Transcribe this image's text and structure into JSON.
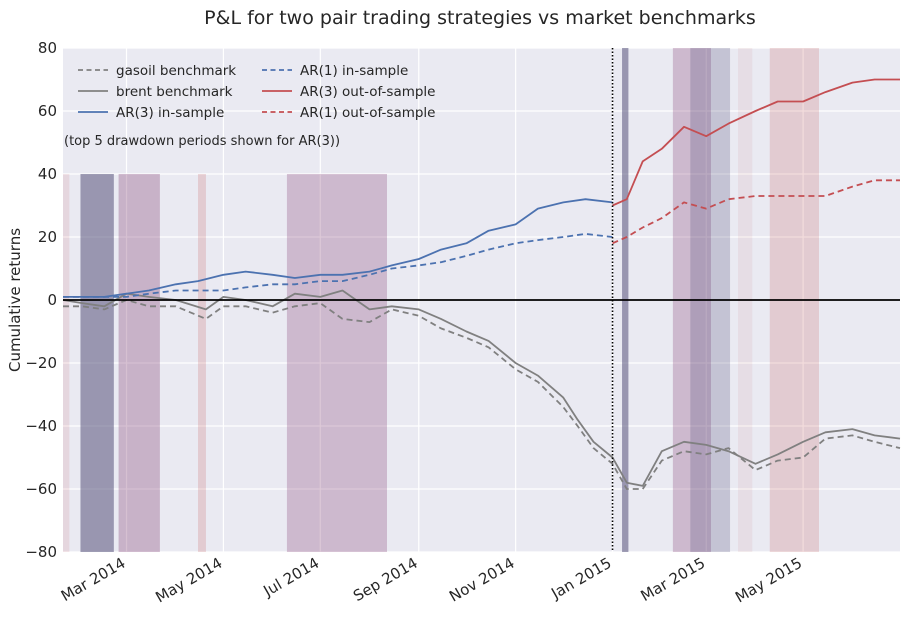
{
  "chart_data": {
    "type": "line",
    "title": "P&L for two pair trading strategies vs market benchmarks",
    "xlabel": "",
    "ylabel": "Cumulative returns",
    "annotation": "(top 5 drawdown periods shown for AR(3))",
    "xlim": [
      "2014-01-20",
      "2015-07-01"
    ],
    "ylim": [
      -80,
      80
    ],
    "yticks": [
      -80,
      -60,
      -40,
      -20,
      0,
      20,
      40,
      60,
      80
    ],
    "ytick_labels": [
      "−80",
      "−60",
      "−40",
      "−20",
      "0",
      "20",
      "40",
      "60",
      "80"
    ],
    "xticks": [
      {
        "date": "2014-03-01",
        "label": "Mar 2014"
      },
      {
        "date": "2014-05-01",
        "label": "May 2014"
      },
      {
        "date": "2014-07-01",
        "label": "Jul 2014"
      },
      {
        "date": "2014-09-01",
        "label": "Sep 2014"
      },
      {
        "date": "2014-11-01",
        "label": "Nov 2014"
      },
      {
        "date": "2015-01-01",
        "label": "Jan 2015"
      },
      {
        "date": "2015-03-01",
        "label": "Mar 2015"
      },
      {
        "date": "2015-05-01",
        "label": "May 2015"
      }
    ],
    "grid": true,
    "legend_position": "top-left",
    "background_color": "#eaeaf2",
    "split_date": "2015-01-01",
    "zero_line": 0,
    "drawdown_periods": [
      {
        "start": "2014-01-20",
        "end": "2014-01-24",
        "color": "#c44e52",
        "alpha": 0.12
      },
      {
        "start": "2014-01-31",
        "end": "2014-02-21",
        "color": "#55507a",
        "alpha": 0.55
      },
      {
        "start": "2014-02-24",
        "end": "2014-03-22",
        "color": "#8a4a7a",
        "alpha": 0.35
      },
      {
        "start": "2014-04-15",
        "end": "2014-04-20",
        "color": "#c44e52",
        "alpha": 0.2
      },
      {
        "start": "2014-06-10",
        "end": "2014-08-12",
        "color": "#8a4a7a",
        "alpha": 0.3
      },
      {
        "start": "2015-01-07",
        "end": "2015-01-11",
        "color": "#55507a",
        "alpha": 0.55
      },
      {
        "start": "2015-02-08",
        "end": "2015-03-04",
        "color": "#8a4a7a",
        "alpha": 0.3
      },
      {
        "start": "2015-02-19",
        "end": "2015-03-16",
        "color": "#55507a",
        "alpha": 0.25
      },
      {
        "start": "2015-03-21",
        "end": "2015-03-30",
        "color": "#c44e52",
        "alpha": 0.08
      },
      {
        "start": "2015-04-10",
        "end": "2015-05-11",
        "color": "#c44e52",
        "alpha": 0.2
      }
    ],
    "series": [
      {
        "name": "gasoil benchmark",
        "color": "#808080",
        "dash": "dashed",
        "x": [
          "2014-01-20",
          "2014-02-01",
          "2014-02-15",
          "2014-03-01",
          "2014-03-15",
          "2014-04-01",
          "2014-04-20",
          "2014-05-01",
          "2014-05-15",
          "2014-06-01",
          "2014-06-15",
          "2014-07-01",
          "2014-07-15",
          "2014-08-01",
          "2014-08-15",
          "2014-09-01",
          "2014-09-15",
          "2014-10-01",
          "2014-10-15",
          "2014-11-01",
          "2014-11-15",
          "2014-12-01",
          "2014-12-10",
          "2014-12-20",
          "2015-01-01",
          "2015-01-10",
          "2015-01-20",
          "2015-02-01",
          "2015-02-15",
          "2015-03-01",
          "2015-03-15",
          "2015-04-01",
          "2015-04-15",
          "2015-05-01",
          "2015-05-15",
          "2015-06-01",
          "2015-06-15",
          "2015-07-01"
        ],
        "y": [
          -2,
          -2,
          -3,
          0,
          -2,
          -2,
          -6,
          -2,
          -2,
          -4,
          -2,
          -1,
          -6,
          -7,
          -3,
          -5,
          -9,
          -12,
          -15,
          -22,
          -26,
          -34,
          -40,
          -47,
          -52,
          -60,
          -60,
          -51,
          -48,
          -49,
          -47,
          -54,
          -51,
          -50,
          -44,
          -43,
          -45,
          -47
        ]
      },
      {
        "name": "brent benchmark",
        "color": "#808080",
        "dash": "solid",
        "x": [
          "2014-01-20",
          "2014-02-01",
          "2014-02-15",
          "2014-03-01",
          "2014-03-15",
          "2014-04-01",
          "2014-04-20",
          "2014-05-01",
          "2014-05-15",
          "2014-06-01",
          "2014-06-15",
          "2014-07-01",
          "2014-07-15",
          "2014-08-01",
          "2014-08-15",
          "2014-09-01",
          "2014-09-15",
          "2014-10-01",
          "2014-10-15",
          "2014-11-01",
          "2014-11-15",
          "2014-12-01",
          "2014-12-10",
          "2014-12-20",
          "2015-01-01",
          "2015-01-10",
          "2015-01-20",
          "2015-02-01",
          "2015-02-15",
          "2015-03-01",
          "2015-03-15",
          "2015-04-01",
          "2015-04-15",
          "2015-05-01",
          "2015-05-15",
          "2015-06-01",
          "2015-06-15",
          "2015-07-01"
        ],
        "y": [
          0,
          -1,
          -2,
          2,
          1,
          0,
          -3,
          1,
          0,
          -2,
          2,
          1,
          3,
          -3,
          -2,
          -3,
          -6,
          -10,
          -13,
          -20,
          -24,
          -31,
          -38,
          -45,
          -50,
          -58,
          -59,
          -48,
          -45,
          -46,
          -48,
          -52,
          -49,
          -45,
          -42,
          -41,
          -43,
          -44
        ]
      },
      {
        "name": "AR(3) in-sample",
        "color": "#4c72b0",
        "dash": "solid",
        "x": [
          "2014-01-20",
          "2014-02-01",
          "2014-02-15",
          "2014-03-01",
          "2014-03-15",
          "2014-04-01",
          "2014-04-15",
          "2014-05-01",
          "2014-05-15",
          "2014-06-01",
          "2014-06-15",
          "2014-07-01",
          "2014-07-15",
          "2014-08-01",
          "2014-08-15",
          "2014-09-01",
          "2014-09-15",
          "2014-10-01",
          "2014-10-15",
          "2014-11-01",
          "2014-11-15",
          "2014-12-01",
          "2014-12-15",
          "2015-01-01"
        ],
        "y": [
          1,
          1,
          1,
          2,
          3,
          5,
          6,
          8,
          9,
          8,
          7,
          8,
          8,
          9,
          11,
          13,
          16,
          18,
          22,
          24,
          29,
          31,
          32,
          31
        ]
      },
      {
        "name": "AR(1) in-sample",
        "color": "#4c72b0",
        "dash": "dashed",
        "x": [
          "2014-01-20",
          "2014-02-01",
          "2014-02-15",
          "2014-03-01",
          "2014-03-15",
          "2014-04-01",
          "2014-04-15",
          "2014-05-01",
          "2014-05-15",
          "2014-06-01",
          "2014-06-15",
          "2014-07-01",
          "2014-07-15",
          "2014-08-01",
          "2014-08-15",
          "2014-09-01",
          "2014-09-15",
          "2014-10-01",
          "2014-10-15",
          "2014-11-01",
          "2014-11-15",
          "2014-12-01",
          "2014-12-15",
          "2015-01-01"
        ],
        "y": [
          1,
          1,
          1,
          1,
          2,
          3,
          3,
          3,
          4,
          5,
          5,
          6,
          6,
          8,
          10,
          11,
          12,
          14,
          16,
          18,
          19,
          20,
          21,
          20
        ]
      },
      {
        "name": "AR(3) out-of-sample",
        "color": "#c44e52",
        "dash": "solid",
        "x": [
          "2015-01-01",
          "2015-01-10",
          "2015-01-20",
          "2015-02-01",
          "2015-02-15",
          "2015-03-01",
          "2015-03-15",
          "2015-04-01",
          "2015-04-15",
          "2015-05-01",
          "2015-05-15",
          "2015-06-01",
          "2015-06-15",
          "2015-07-01"
        ],
        "y": [
          30,
          32,
          44,
          48,
          55,
          52,
          56,
          60,
          63,
          63,
          66,
          69,
          70,
          70
        ]
      },
      {
        "name": "AR(1) out-of-sample",
        "color": "#c44e52",
        "dash": "dashed",
        "x": [
          "2015-01-01",
          "2015-01-10",
          "2015-01-20",
          "2015-02-01",
          "2015-02-15",
          "2015-03-01",
          "2015-03-15",
          "2015-04-01",
          "2015-04-15",
          "2015-05-01",
          "2015-05-15",
          "2015-06-01",
          "2015-06-15",
          "2015-07-01"
        ],
        "y": [
          18,
          20,
          23,
          26,
          31,
          29,
          32,
          33,
          33,
          33,
          33,
          36,
          38,
          38
        ]
      }
    ]
  }
}
